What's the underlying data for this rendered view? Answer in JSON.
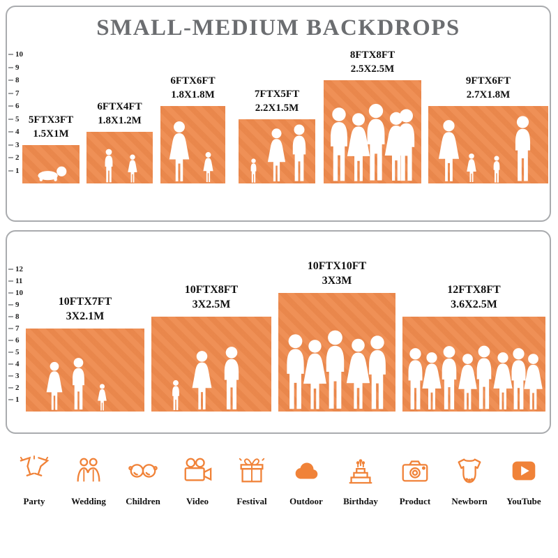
{
  "title": "SMALL-MEDIUM BACKDROPS",
  "accent_color": "#EE8A4D",
  "icon_color": "#F08238",
  "title_color": "#6B6D70",
  "panel1": {
    "ruler": [
      "1",
      "2",
      "3",
      "4",
      "5",
      "6",
      "7",
      "8",
      "9",
      "10"
    ],
    "bars": [
      {
        "ft": "5FTX3FT",
        "m": "1.5X1M"
      },
      {
        "ft": "6FTX4FT",
        "m": "1.8X1.2M"
      },
      {
        "ft": "6FTX6FT",
        "m": "1.8X1.8M"
      },
      {
        "ft": "7FTX5FT",
        "m": "2.2X1.5M"
      },
      {
        "ft": "8FTX8FT",
        "m": "2.5X2.5M"
      },
      {
        "ft": "9FTX6FT",
        "m": "2.7X1.8M"
      }
    ]
  },
  "panel2": {
    "ruler": [
      "1",
      "2",
      "3",
      "4",
      "5",
      "6",
      "7",
      "8",
      "9",
      "10",
      "11",
      "12"
    ],
    "bars": [
      {
        "ft": "10FTX7FT",
        "m": "3X2.1M"
      },
      {
        "ft": "10FTX8FT",
        "m": "3X2.5M"
      },
      {
        "ft": "10FTX10FT",
        "m": "3X3M"
      },
      {
        "ft": "12FTX8FT",
        "m": "3.6X2.5M"
      }
    ]
  },
  "categories": [
    {
      "label": "Party",
      "icon": "party-icon"
    },
    {
      "label": "Wedding",
      "icon": "wedding-icon"
    },
    {
      "label": "Children",
      "icon": "children-icon"
    },
    {
      "label": "Video",
      "icon": "video-icon"
    },
    {
      "label": "Festival",
      "icon": "festival-icon"
    },
    {
      "label": "Outdoor",
      "icon": "outdoor-icon"
    },
    {
      "label": "Birthday",
      "icon": "birthday-icon"
    },
    {
      "label": "Product",
      "icon": "product-icon"
    },
    {
      "label": "Newborn",
      "icon": "newborn-icon"
    },
    {
      "label": "YouTube",
      "icon": "youtube-icon"
    }
  ]
}
